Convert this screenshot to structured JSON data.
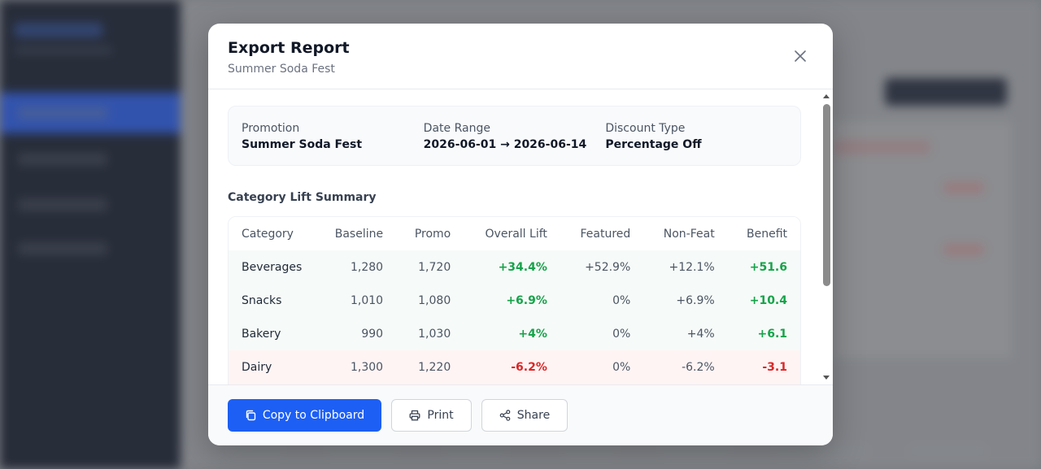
{
  "modal": {
    "title": "Export Report",
    "subtitle": "Summer Soda Fest"
  },
  "info": [
    {
      "label": "Promotion",
      "value": "Summer Soda Fest"
    },
    {
      "label": "Date Range",
      "value": "2026-06-01 → 2026-06-14"
    },
    {
      "label": "Discount Type",
      "value": "Percentage Off"
    }
  ],
  "section_title": "Category Lift Summary",
  "table": {
    "headers": [
      "Category",
      "Baseline",
      "Promo",
      "Overall Lift",
      "Featured",
      "Non-Feat",
      "Benefit"
    ],
    "rows": [
      {
        "status": "pos",
        "cells": [
          "Beverages",
          "1,280",
          "1,720",
          "+34.4%",
          "+52.9%",
          "+12.1%",
          "+51.6"
        ]
      },
      {
        "status": "pos",
        "cells": [
          "Snacks",
          "1,010",
          "1,080",
          "+6.9%",
          "0%",
          "+6.9%",
          "+10.4"
        ]
      },
      {
        "status": "pos",
        "cells": [
          "Bakery",
          "990",
          "1,030",
          "+4%",
          "0%",
          "+4%",
          "+6.1"
        ]
      },
      {
        "status": "neg",
        "cells": [
          "Dairy",
          "1,300",
          "1,220",
          "-6.2%",
          "0%",
          "-6.2%",
          "-3.1"
        ]
      }
    ]
  },
  "footer": {
    "copy_label": "Copy to Clipboard",
    "print_label": "Print",
    "share_label": "Share"
  },
  "icons": {
    "close": "close-icon",
    "copy": "copy-icon",
    "print": "printer-icon",
    "share": "share-icon"
  },
  "colors": {
    "primary": "#1d5ff5",
    "positive": "#16a34a",
    "negative": "#dc2626",
    "sidebar": "#0d1424"
  }
}
